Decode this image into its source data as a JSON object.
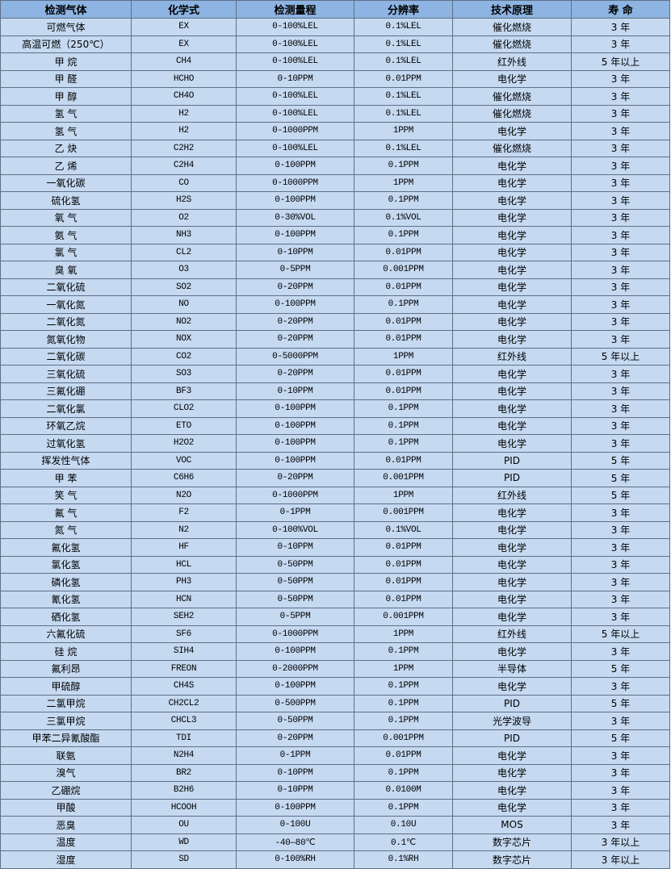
{
  "table": {
    "headers": [
      "检测气体",
      "化学式",
      "检测量程",
      "分辨率",
      "技术原理",
      "寿 命"
    ],
    "rows": [
      [
        "可燃气体",
        "EX",
        "0-100%LEL",
        "0.1%LEL",
        "催化燃烧",
        "3 年"
      ],
      [
        "高温可燃（250℃）",
        "EX",
        "0-100%LEL",
        "0.1%LEL",
        "催化燃烧",
        "3 年"
      ],
      [
        "甲 烷",
        "CH4",
        "0-100%LEL",
        "0.1%LEL",
        "红外线",
        "5 年以上"
      ],
      [
        "甲 醛",
        "HCHO",
        "0-10PPM",
        "0.01PPM",
        "电化学",
        "3 年"
      ],
      [
        "甲 醇",
        "CH4O",
        "0-100%LEL",
        "0.1%LEL",
        "催化燃烧",
        "3 年"
      ],
      [
        "氢 气",
        "H2",
        "0-100%LEL",
        "0.1%LEL",
        "催化燃烧",
        "3 年"
      ],
      [
        "氢 气",
        "H2",
        "0-1000PPM",
        "1PPM",
        "电化学",
        "3 年"
      ],
      [
        "乙 炔",
        "C2H2",
        "0-100%LEL",
        "0.1%LEL",
        "催化燃烧",
        "3 年"
      ],
      [
        "乙 烯",
        "C2H4",
        "0-100PPM",
        "0.1PPM",
        "电化学",
        "3 年"
      ],
      [
        "一氧化碳",
        "CO",
        "0-1000PPM",
        "1PPM",
        "电化学",
        "3 年"
      ],
      [
        "硫化氢",
        "H2S",
        "0-100PPM",
        "0.1PPM",
        "电化学",
        "3 年"
      ],
      [
        "氧 气",
        "O2",
        "0-30%VOL",
        "0.1%VOL",
        "电化学",
        "3 年"
      ],
      [
        "氨 气",
        "NH3",
        "0-100PPM",
        "0.1PPM",
        "电化学",
        "3 年"
      ],
      [
        "氯 气",
        "CL2",
        "0-10PPM",
        "0.01PPM",
        "电化学",
        "3 年"
      ],
      [
        "臭 氧",
        "O3",
        "0-5PPM",
        "0.001PPM",
        "电化学",
        "3 年"
      ],
      [
        "二氧化硫",
        "SO2",
        "0-20PPM",
        "0.01PPM",
        "电化学",
        "3 年"
      ],
      [
        "一氧化氮",
        "NO",
        "0-100PPM",
        "0.1PPM",
        "电化学",
        "3 年"
      ],
      [
        "二氧化氮",
        "NO2",
        "0-20PPM",
        "0.01PPM",
        "电化学",
        "3 年"
      ],
      [
        "氮氧化物",
        "NOX",
        "0-20PPM",
        "0.01PPM",
        "电化学",
        "3 年"
      ],
      [
        "二氧化碳",
        "CO2",
        "0-5000PPM",
        "1PPM",
        "红外线",
        "5 年以上"
      ],
      [
        "三氧化硫",
        "SO3",
        "0-20PPM",
        "0.01PPM",
        "电化学",
        "3 年"
      ],
      [
        "三氟化硼",
        "BF3",
        "0-10PPM",
        "0.01PPM",
        "电化学",
        "3 年"
      ],
      [
        "二氧化氯",
        "CLO2",
        "0-100PPM",
        "0.1PPM",
        "电化学",
        "3 年"
      ],
      [
        "环氧乙烷",
        "ETO",
        "0-100PPM",
        "0.1PPM",
        "电化学",
        "3 年"
      ],
      [
        "过氧化氢",
        "H2O2",
        "0-100PPM",
        "0.1PPM",
        "电化学",
        "3 年"
      ],
      [
        "挥发性气体",
        "VOC",
        "0-100PPM",
        "0.01PPM",
        "PID",
        "5 年"
      ],
      [
        "甲 苯",
        "C6H6",
        "0-20PPM",
        "0.001PPM",
        "PID",
        "5 年"
      ],
      [
        "笑 气",
        "N2O",
        "0-1000PPM",
        "1PPM",
        "红外线",
        "5 年"
      ],
      [
        "氟 气",
        "F2",
        "0-1PPM",
        "0.001PPM",
        "电化学",
        "3 年"
      ],
      [
        "氮 气",
        "N2",
        "0-100%VOL",
        "0.1%VOL",
        "电化学",
        "3 年"
      ],
      [
        "氟化氢",
        "HF",
        "0-10PPM",
        "0.01PPM",
        "电化学",
        "3 年"
      ],
      [
        "氯化氢",
        "HCL",
        "0-50PPM",
        "0.01PPM",
        "电化学",
        "3 年"
      ],
      [
        "磷化氢",
        "PH3",
        "0-50PPM",
        "0.01PPM",
        "电化学",
        "3 年"
      ],
      [
        "氰化氢",
        "HCN",
        "0-50PPM",
        "0.01PPM",
        "电化学",
        "3 年"
      ],
      [
        "硒化氢",
        "SEH2",
        "0-5PPM",
        "0.001PPM",
        "电化学",
        "3 年"
      ],
      [
        "六氟化硫",
        "SF6",
        "0-1000PPM",
        "1PPM",
        "红外线",
        "5 年以上"
      ],
      [
        "硅 烷",
        "SIH4",
        "0-100PPM",
        "0.1PPM",
        "电化学",
        "3 年"
      ],
      [
        "氟利昂",
        "FREON",
        "0-2000PPM",
        "1PPM",
        "半导体",
        "5 年"
      ],
      [
        "甲硫醇",
        "CH4S",
        "0-100PPM",
        "0.1PPM",
        "电化学",
        "3 年"
      ],
      [
        "二氯甲烷",
        "CH2CL2",
        "0-500PPM",
        "0.1PPM",
        "PID",
        "5 年"
      ],
      [
        "三氯甲烷",
        "CHCL3",
        "0-50PPM",
        "0.1PPM",
        "光学波导",
        "3 年"
      ],
      [
        "甲苯二异氰酸酯",
        "TDI",
        "0-20PPM",
        "0.001PPM",
        "PID",
        "5 年"
      ],
      [
        "联氨",
        "N2H4",
        "0-1PPM",
        "0.01PPM",
        "电化学",
        "3 年"
      ],
      [
        "溴气",
        "BR2",
        "0-10PPM",
        "0.1PPM",
        "电化学",
        "3 年"
      ],
      [
        "乙硼烷",
        "B2H6",
        "0-10PPM",
        "0.0100M",
        "电化学",
        "3 年"
      ],
      [
        "甲酸",
        "HCOOH",
        "0-100PPM",
        "0.1PPM",
        "电化学",
        "3 年"
      ],
      [
        "恶臭",
        "OU",
        "0-100U",
        "0.10U",
        "MOS",
        "3 年"
      ],
      [
        "温度",
        "WD",
        "-40—80℃",
        "0.1℃",
        "数字芯片",
        "3 年以上"
      ],
      [
        "湿度",
        "SD",
        "0-100%RH",
        "0.1%RH",
        "数字芯片",
        "3 年以上"
      ]
    ]
  },
  "colors": {
    "header_bg": "#8db4e2",
    "row_bg": "#c5d9f1",
    "border": "#5f6f86"
  }
}
